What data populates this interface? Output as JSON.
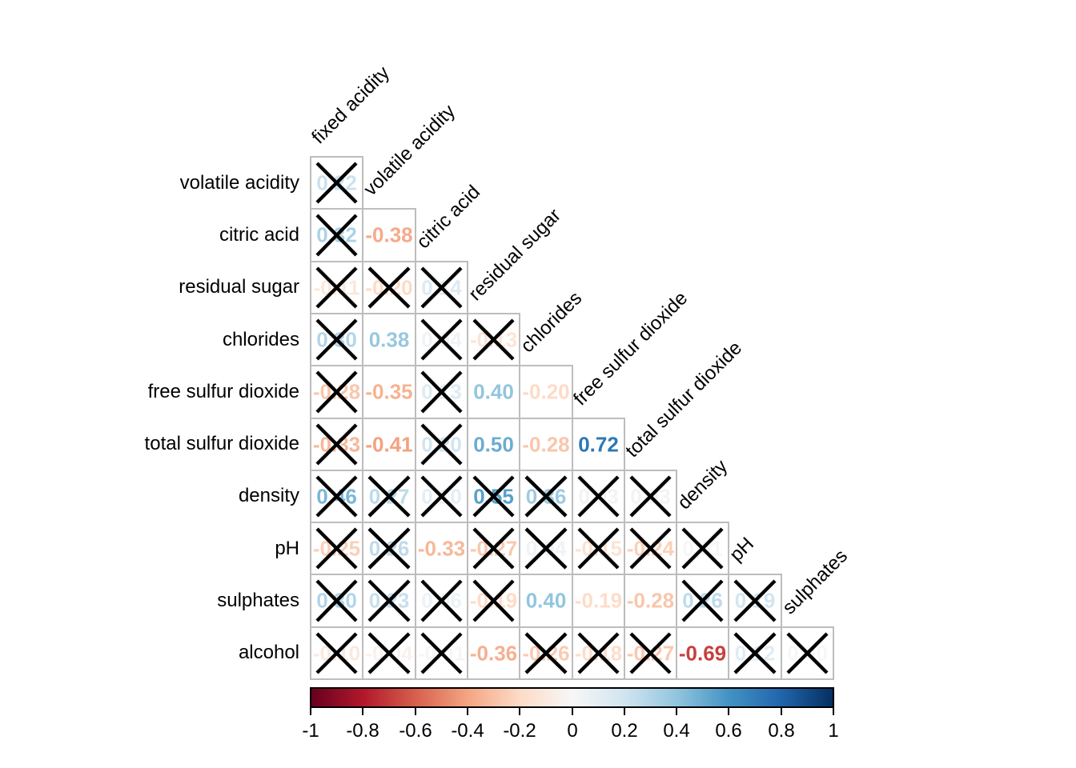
{
  "chart_data": {
    "type": "heatmap",
    "subtype": "lower-triangular correlation matrix with significance crosses",
    "title": "",
    "column_labels": [
      "fixed acidity",
      "volatile acidity",
      "citric acid",
      "residual sugar",
      "chlorides",
      "free sulfur dioxide",
      "total sulfur dioxide",
      "density",
      "pH",
      "sulphates"
    ],
    "rows": [
      {
        "label": "volatile acidity",
        "values": [
          0.22
        ],
        "crossed": [
          true
        ]
      },
      {
        "label": "citric acid",
        "values": [
          0.32,
          -0.38
        ],
        "crossed": [
          true,
          false
        ]
      },
      {
        "label": "residual sugar",
        "values": [
          -0.11,
          -0.2,
          0.14
        ],
        "crossed": [
          true,
          true,
          true
        ]
      },
      {
        "label": "chlorides",
        "values": [
          0.3,
          0.38,
          0.04,
          -0.13
        ],
        "crossed": [
          true,
          false,
          true,
          true
        ]
      },
      {
        "label": "free sulfur dioxide",
        "values": [
          -0.28,
          -0.35,
          0.13,
          0.4,
          -0.2
        ],
        "crossed": [
          true,
          false,
          true,
          false,
          false
        ]
      },
      {
        "label": "total sulfur dioxide",
        "values": [
          -0.33,
          -0.41,
          0.2,
          0.5,
          -0.28,
          0.72
        ],
        "crossed": [
          true,
          false,
          true,
          false,
          false,
          false
        ]
      },
      {
        "label": "density",
        "values": [
          0.46,
          0.27,
          0.1,
          0.55,
          0.36,
          0.03,
          0.03
        ],
        "crossed": [
          true,
          true,
          true,
          true,
          true,
          true,
          true
        ]
      },
      {
        "label": "pH",
        "values": [
          -0.25,
          0.26,
          -0.33,
          -0.27,
          0.04,
          -0.15,
          -0.24,
          0.01
        ],
        "crossed": [
          true,
          true,
          false,
          true,
          true,
          true,
          true,
          true
        ]
      },
      {
        "label": "sulphates",
        "values": [
          0.3,
          0.23,
          0.06,
          -0.19,
          0.4,
          -0.19,
          -0.28,
          0.26,
          0.19
        ],
        "crossed": [
          true,
          true,
          true,
          true,
          false,
          false,
          false,
          true,
          true
        ]
      },
      {
        "label": "alcohol",
        "values": [
          -0.1,
          -0.04,
          -0.01,
          -0.36,
          -0.26,
          -0.18,
          -0.27,
          -0.69,
          0.12,
          0.0
        ],
        "crossed": [
          true,
          true,
          true,
          false,
          true,
          true,
          true,
          false,
          true,
          true
        ]
      }
    ],
    "colorbar": {
      "min": -1,
      "max": 1,
      "tick_labels": [
        "-1",
        "-0.8",
        "-0.6",
        "-0.4",
        "-0.2",
        "0",
        "0.2",
        "0.4",
        "0.6",
        "0.8",
        "1"
      ],
      "colormap_stops": [
        "#67001F",
        "#B2182B",
        "#D6604D",
        "#F4A582",
        "#FDDBC7",
        "#F7F7F7",
        "#D1E5F0",
        "#92C5DE",
        "#4393C4",
        "#2166AC",
        "#053061"
      ]
    },
    "cross_color": "#000000",
    "grid_color": "#bdbdbd",
    "background_color": "#ffffff"
  }
}
